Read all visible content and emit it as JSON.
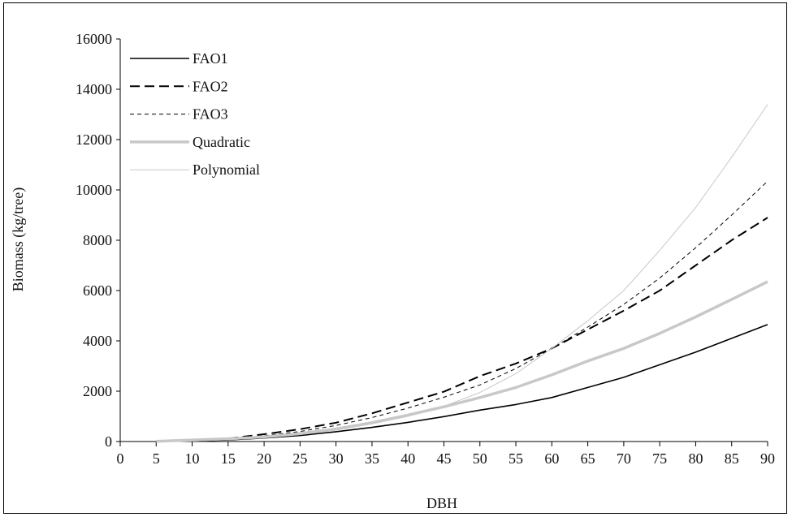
{
  "chart_data": {
    "type": "line",
    "title": "",
    "xlabel": "DBH",
    "ylabel": "Biomass (kg/tree)",
    "xlim": [
      0,
      90
    ],
    "ylim": [
      0,
      16000
    ],
    "xticks": [
      "0",
      "5",
      "10",
      "15",
      "20",
      "25",
      "30",
      "35",
      "40",
      "45",
      "50",
      "55",
      "60",
      "65",
      "70",
      "75",
      "80",
      "85",
      "90"
    ],
    "yticks": [
      "0",
      "2000",
      "4000",
      "6000",
      "8000",
      "10000",
      "12000",
      "14000",
      "16000"
    ],
    "grid": false,
    "legend_position": "top-left",
    "series": [
      {
        "name": "FAO1",
        "style": "solid",
        "color": "#000000",
        "x": [
          5,
          10,
          15,
          20,
          25,
          30,
          35,
          40,
          45,
          50,
          55,
          60,
          65,
          70,
          75,
          80,
          85,
          90
        ],
        "y": [
          5,
          25,
          60,
          140,
          240,
          390,
          560,
          760,
          990,
          1250,
          1470,
          1750,
          2150,
          2550,
          3050,
          3550,
          4100,
          4650
        ]
      },
      {
        "name": "FAO2",
        "style": "long-dash",
        "color": "#000000",
        "x": [
          15,
          20,
          25,
          30,
          35,
          40,
          45,
          50,
          55,
          60,
          65,
          70,
          75,
          80,
          85,
          90
        ],
        "y": [
          120,
          290,
          490,
          750,
          1120,
          1550,
          1980,
          2600,
          3100,
          3700,
          4450,
          5200,
          6000,
          7000,
          8000,
          8900
        ]
      },
      {
        "name": "FAO3",
        "style": "short-dash",
        "color": "#000000",
        "x": [
          15,
          20,
          25,
          30,
          35,
          40,
          45,
          50,
          55,
          60,
          65,
          70,
          75,
          80,
          85,
          90
        ],
        "y": [
          90,
          230,
          400,
          640,
          950,
          1330,
          1760,
          2250,
          2900,
          3700,
          4550,
          5450,
          6500,
          7700,
          9000,
          10350
        ]
      },
      {
        "name": "Quadratic",
        "style": "thick",
        "color": "#c8c8c8",
        "x": [
          5,
          10,
          15,
          20,
          25,
          30,
          35,
          40,
          45,
          50,
          55,
          60,
          65,
          70,
          75,
          80,
          85,
          90
        ],
        "y": [
          10,
          60,
          110,
          180,
          320,
          500,
          750,
          1050,
          1380,
          1750,
          2150,
          2650,
          3200,
          3700,
          4300,
          4950,
          5650,
          6350
        ]
      },
      {
        "name": "Polynomial",
        "style": "thin",
        "color": "#c8c8c8",
        "x": [
          5,
          10,
          15,
          20,
          25,
          30,
          35,
          40,
          45,
          50,
          55,
          60,
          65,
          70,
          75,
          80,
          85,
          90
        ],
        "y": [
          5,
          20,
          70,
          150,
          270,
          450,
          700,
          1000,
          1400,
          1950,
          2700,
          3700,
          4800,
          6000,
          7600,
          9300,
          11300,
          13400
        ]
      }
    ]
  }
}
